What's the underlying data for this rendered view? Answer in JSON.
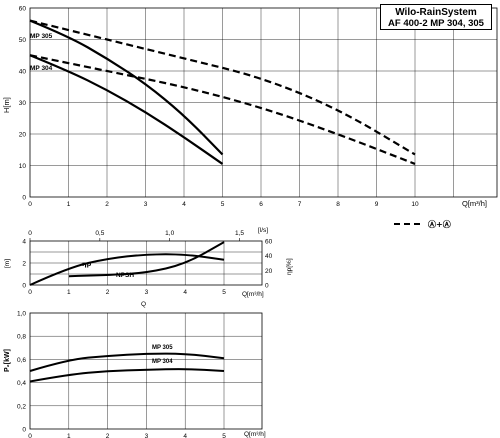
{
  "header": {
    "title": "Wilo-RainSystem",
    "subtitle": "AF 400-2   MP 304, 305"
  },
  "legend": {
    "label": "Ⓐ+Ⓐ"
  },
  "chart_data": [
    {
      "id": "head",
      "type": "line",
      "xlabel": "Q[m³/h]",
      "ylabel": "H[m]",
      "xlim": [
        0,
        12
      ],
      "ylim": [
        0,
        60
      ],
      "xticks": [
        0,
        1,
        2,
        3,
        4,
        5,
        6,
        7,
        8,
        9,
        10
      ],
      "yticks": [
        0,
        10,
        20,
        30,
        40,
        50,
        60
      ],
      "grid": true,
      "series": [
        {
          "name": "MP 305",
          "style": "solid",
          "x": [
            0,
            1,
            2,
            3,
            4,
            5
          ],
          "y": [
            56,
            51,
            44,
            36,
            26,
            13.5
          ]
        },
        {
          "name": "MP 304",
          "style": "solid",
          "x": [
            0,
            1,
            2,
            3,
            4,
            5
          ],
          "y": [
            45,
            40,
            34,
            27,
            19,
            10.5
          ]
        },
        {
          "name": "",
          "style": "dashed",
          "x": [
            0,
            2,
            4,
            6,
            8,
            10
          ],
          "y": [
            56,
            50,
            44,
            38,
            28,
            13.5
          ]
        },
        {
          "name": "",
          "style": "dashed",
          "x": [
            0,
            2,
            4,
            6,
            8,
            10
          ],
          "y": [
            45,
            40,
            35,
            28.5,
            20,
            10.5
          ]
        }
      ]
    },
    {
      "id": "npsh",
      "type": "line",
      "xlabel": "Q",
      "xlabel2": "Q[m³/h]",
      "top_axis_label": "[l/s]",
      "ylabel_left": "[m]",
      "ylabel_right": "ηp[%]",
      "xlim": [
        0,
        6
      ],
      "ylim": [
        0,
        4
      ],
      "xticks": [
        0,
        1,
        2,
        3,
        4,
        5
      ],
      "yticks_left": [
        0,
        2,
        4
      ],
      "yticks_right": [
        0,
        20,
        40,
        60
      ],
      "top_ticks": [
        "0",
        "0,5",
        "1,0",
        "1,5"
      ],
      "grid": true,
      "series": [
        {
          "name": "ηp",
          "style": "solid",
          "x": [
            0,
            1,
            2,
            3,
            4,
            5
          ],
          "y": [
            0,
            1.6,
            2.4,
            2.8,
            2.8,
            2.3
          ]
        },
        {
          "name": "NPSH",
          "style": "solid",
          "x": [
            1,
            2,
            3,
            4,
            5
          ],
          "y": [
            0.8,
            0.9,
            1.1,
            1.9,
            3.9
          ]
        }
      ]
    },
    {
      "id": "power",
      "type": "line",
      "xlabel": "Q[m³/h]",
      "ylabel": "P₂[kW]",
      "xlim": [
        0,
        6
      ],
      "ylim": [
        0,
        1.0
      ],
      "xticks": [
        0,
        1,
        2,
        3,
        4,
        5
      ],
      "yticks": [
        0,
        0.2,
        0.4,
        0.6,
        0.8,
        1.0
      ],
      "ytick_labels": [
        "0",
        "0,2",
        "0,4",
        "0,6",
        "0,8",
        "1,0"
      ],
      "grid": true,
      "series": [
        {
          "name": "MP 305",
          "style": "solid",
          "x": [
            0,
            1,
            2,
            3,
            4,
            5
          ],
          "y": [
            0.5,
            0.6,
            0.63,
            0.65,
            0.65,
            0.61
          ]
        },
        {
          "name": "MP 304",
          "style": "solid",
          "x": [
            0,
            1,
            2,
            3,
            4,
            5
          ],
          "y": [
            0.41,
            0.47,
            0.5,
            0.51,
            0.52,
            0.5
          ]
        }
      ]
    }
  ]
}
